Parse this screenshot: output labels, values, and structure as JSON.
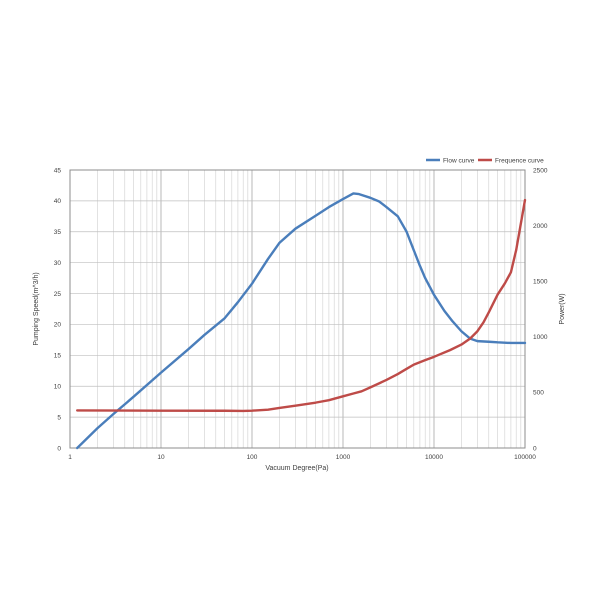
{
  "chart_data": {
    "type": "line",
    "xscale": "log",
    "xlabel": "Vacuum Degree(Pa)",
    "ylabel": "Pumping Speed(m^3/h)",
    "y2label": "Power(W)",
    "xlim": [
      1,
      100000
    ],
    "ylim": [
      0,
      45
    ],
    "y2lim": [
      0,
      2500
    ],
    "x_ticks": [
      "1",
      "10",
      "100",
      "1000",
      "10000",
      "100000"
    ],
    "y_ticks": [
      "0",
      "5",
      "10",
      "15",
      "20",
      "25",
      "30",
      "35",
      "40",
      "45"
    ],
    "y2_ticks": [
      "0",
      "500",
      "1000",
      "1500",
      "2000",
      "2500"
    ],
    "grid": true,
    "legend_position": "top-right",
    "series": [
      {
        "name": "Flow curve",
        "axis": "left",
        "color": "#4a7ebb",
        "x": [
          1.2,
          2,
          3,
          5,
          10,
          20,
          30,
          50,
          70,
          100,
          150,
          200,
          300,
          500,
          700,
          1000,
          1300,
          1500,
          2000,
          2500,
          3000,
          4000,
          5000,
          6000,
          7000,
          8000,
          10000,
          13000,
          16000,
          20000,
          25000,
          30000,
          40000,
          50000,
          70000,
          100000
        ],
        "y": [
          0,
          3.2,
          5.5,
          8.3,
          12.2,
          16.0,
          18.3,
          21.0,
          23.6,
          26.6,
          30.6,
          33.2,
          35.5,
          37.6,
          39.0,
          40.3,
          41.2,
          41.1,
          40.5,
          39.9,
          39.0,
          37.5,
          35.0,
          32.0,
          29.5,
          27.5,
          24.8,
          22.2,
          20.5,
          18.9,
          17.7,
          17.3,
          17.2,
          17.1,
          17.0,
          17.0
        ]
      },
      {
        "name": "Frequence curve",
        "axis": "right",
        "color": "#be4b48",
        "x": [
          1.2,
          10,
          50,
          80,
          100,
          150,
          200,
          300,
          500,
          700,
          1000,
          1300,
          1600,
          2000,
          3000,
          4000,
          5000,
          6000,
          8000,
          10000,
          15000,
          20000,
          25000,
          30000,
          35000,
          40000,
          50000,
          60000,
          70000,
          80000,
          100000
        ],
        "y": [
          338,
          336,
          335,
          333,
          336,
          345,
          360,
          380,
          408,
          430,
          465,
          490,
          510,
          545,
          612,
          665,
          712,
          750,
          790,
          820,
          880,
          930,
          985,
          1050,
          1130,
          1220,
          1380,
          1480,
          1580,
          1780,
          2230
        ]
      }
    ]
  }
}
